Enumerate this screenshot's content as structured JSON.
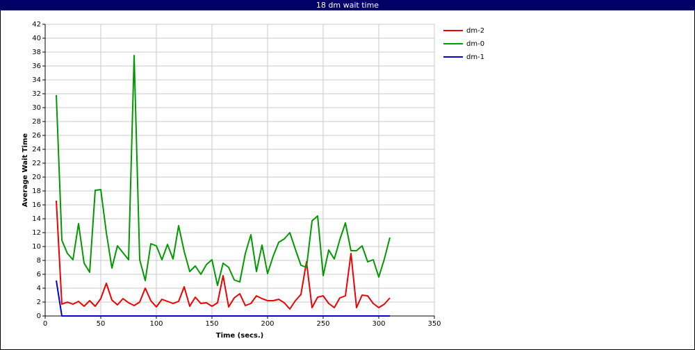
{
  "chart_data": {
    "type": "line",
    "title": "18 dm wait time",
    "x_label": "Time (secs.)",
    "y_label": "Average Wait Time",
    "x": [
      10,
      15,
      20,
      25,
      30,
      35,
      40,
      45,
      50,
      55,
      60,
      65,
      70,
      75,
      80,
      85,
      90,
      95,
      100,
      105,
      110,
      115,
      120,
      125,
      130,
      135,
      140,
      145,
      150,
      155,
      160,
      165,
      170,
      175,
      180,
      185,
      190,
      195,
      200,
      205,
      210,
      215,
      220,
      225,
      230,
      235,
      240,
      245,
      250,
      255,
      260,
      265,
      270,
      275,
      280,
      285,
      290,
      295,
      300,
      305,
      310
    ],
    "series": [
      {
        "name": "dm-2",
        "color": "#ee0000",
        "values": [
          16.6,
          1.7,
          2.0,
          1.7,
          2.1,
          1.4,
          2.2,
          1.4,
          2.5,
          4.7,
          2.3,
          1.6,
          2.5,
          1.9,
          1.5,
          2.0,
          4.0,
          2.2,
          1.3,
          2.4,
          2.1,
          1.8,
          2.1,
          4.2,
          1.4,
          2.7,
          1.8,
          1.9,
          1.4,
          1.9,
          5.8,
          1.3,
          2.6,
          3.2,
          1.5,
          1.8,
          2.9,
          2.5,
          2.2,
          2.2,
          2.4,
          1.9,
          1.0,
          2.2,
          3.1,
          7.8,
          1.2,
          2.7,
          2.9,
          1.8,
          1.2,
          2.6,
          2.9,
          9.0,
          1.2,
          3.0,
          2.9,
          1.8,
          1.2,
          1.7,
          2.6
        ]
      },
      {
        "name": "dm-0",
        "color": "#009900",
        "values": [
          31.8,
          10.9,
          9.0,
          8.1,
          13.3,
          7.6,
          6.3,
          18.1,
          18.2,
          12.0,
          6.9,
          10.1,
          9.1,
          8.1,
          37.5,
          8.1,
          5.1,
          10.4,
          10.1,
          8.1,
          10.3,
          8.2,
          13.0,
          9.3,
          6.4,
          7.2,
          6.0,
          7.4,
          8.1,
          4.4,
          7.6,
          7.0,
          5.2,
          4.9,
          9.0,
          11.7,
          6.4,
          10.2,
          6.1,
          8.6,
          10.6,
          11.1,
          12.0,
          9.6,
          7.3,
          7.0,
          13.7,
          14.4,
          5.8,
          9.5,
          8.2,
          11.0,
          13.4,
          9.4,
          9.4,
          10.1,
          7.8,
          8.1,
          5.6,
          8.2,
          11.3
        ]
      },
      {
        "name": "dm-1",
        "color": "#0000cc",
        "values": [
          5.1,
          0,
          0,
          0,
          0,
          0,
          0,
          0,
          0,
          0,
          0,
          0,
          0,
          0,
          0,
          0,
          0,
          0,
          0,
          0,
          0,
          0,
          0,
          0,
          0,
          0,
          0,
          0,
          0,
          0,
          0,
          0,
          0,
          0,
          0,
          0,
          0,
          0,
          0,
          0,
          0,
          0,
          0,
          0,
          0,
          0,
          0,
          0,
          0,
          0,
          0,
          0,
          0,
          0,
          0,
          0,
          0,
          0,
          0,
          0,
          0
        ]
      }
    ],
    "xlim": [
      0,
      350
    ],
    "xticks": [
      0,
      50,
      100,
      150,
      200,
      250,
      300,
      350
    ],
    "ylim": [
      0,
      42
    ],
    "yticks": [
      0,
      2,
      4,
      6,
      8,
      10,
      12,
      14,
      16,
      18,
      20,
      22,
      24,
      26,
      28,
      30,
      32,
      34,
      36,
      38,
      40,
      42
    ],
    "grid": true
  }
}
